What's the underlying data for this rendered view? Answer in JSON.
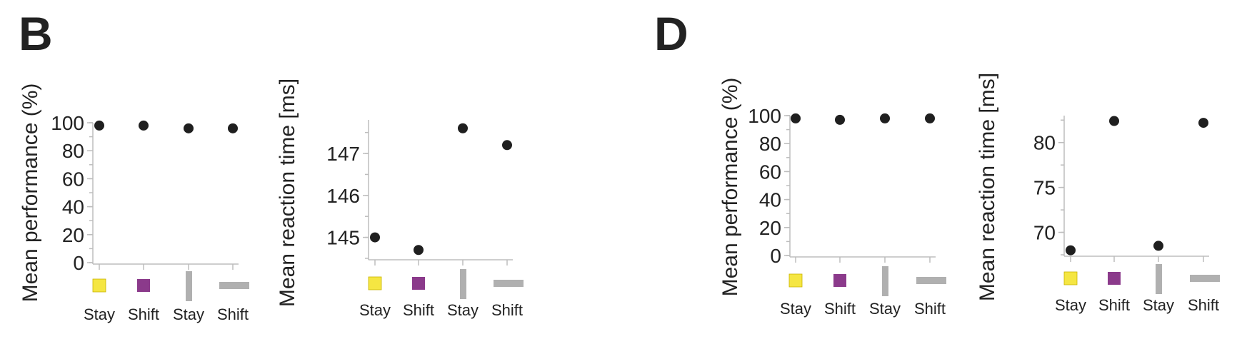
{
  "panels": {
    "left_letter": "B",
    "right_letter": "D"
  },
  "colors": {
    "stay_square": "#f5e642",
    "shift_square": "#8b3a8b",
    "bar_marker": "#b0b0b0",
    "points": "#1f1f1f"
  },
  "chart_data": [
    {
      "type": "scatter",
      "panel": "B",
      "categories": [
        "Stay",
        "Shift",
        "Stay",
        "Shift"
      ],
      "category_icons": [
        "yellow-square",
        "purple-square",
        "vertical-bar",
        "horizontal-bar"
      ],
      "values": [
        98,
        98,
        96,
        96
      ],
      "ylabel": "Mean performance (%)",
      "yticks": [
        0,
        20,
        40,
        60,
        80,
        100
      ],
      "ylim": [
        0,
        100
      ]
    },
    {
      "type": "scatter",
      "panel": "B",
      "categories": [
        "Stay",
        "Shift",
        "Stay",
        "Shift"
      ],
      "category_icons": [
        "yellow-square",
        "purple-square",
        "vertical-bar",
        "horizontal-bar"
      ],
      "values": [
        145.0,
        144.7,
        147.6,
        147.2
      ],
      "ylabel": "Mean reaction time [ms]",
      "yticks": [
        145,
        146,
        147
      ],
      "ylim": [
        144.5,
        147.8
      ]
    },
    {
      "type": "scatter",
      "panel": "D",
      "categories": [
        "Stay",
        "Shift",
        "Stay",
        "Shift"
      ],
      "category_icons": [
        "yellow-square",
        "purple-square",
        "vertical-bar",
        "horizontal-bar"
      ],
      "values": [
        98,
        97,
        98,
        98
      ],
      "ylabel": "Mean performance (%)",
      "yticks": [
        0,
        20,
        40,
        60,
        80,
        100
      ],
      "ylim": [
        0,
        100
      ]
    },
    {
      "type": "scatter",
      "panel": "D",
      "categories": [
        "Stay",
        "Shift",
        "Stay",
        "Shift"
      ],
      "category_icons": [
        "yellow-square",
        "purple-square",
        "vertical-bar",
        "horizontal-bar"
      ],
      "values": [
        68.0,
        82.4,
        68.5,
        82.2
      ],
      "ylabel": "Mean reaction time [ms]",
      "yticks": [
        70,
        75,
        80
      ],
      "ylim": [
        67.5,
        83.0
      ]
    }
  ]
}
